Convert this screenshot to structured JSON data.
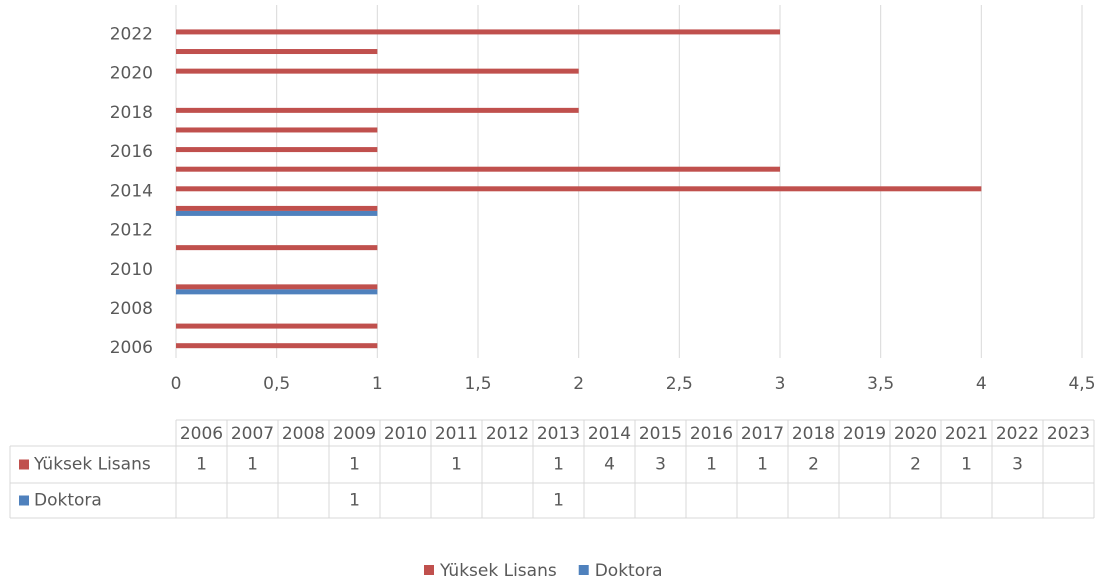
{
  "chart_data": {
    "type": "bar",
    "orientation": "horizontal",
    "categories": [
      "2006",
      "2007",
      "2008",
      "2009",
      "2010",
      "2011",
      "2012",
      "2013",
      "2014",
      "2015",
      "2016",
      "2017",
      "2018",
      "2019",
      "2020",
      "2021",
      "2022",
      "2023"
    ],
    "axis_label_every": 2,
    "series": [
      {
        "name": "Yüksek Lisans",
        "color": "#c0504d",
        "values": [
          1,
          1,
          null,
          1,
          null,
          1,
          null,
          1,
          4,
          3,
          1,
          1,
          2,
          null,
          2,
          1,
          3,
          null
        ]
      },
      {
        "name": "Doktora",
        "color": "#4f81bd",
        "values": [
          null,
          null,
          null,
          1,
          null,
          null,
          null,
          1,
          null,
          null,
          null,
          null,
          null,
          null,
          null,
          null,
          null,
          null
        ]
      }
    ],
    "xlim": [
      0,
      4.5
    ],
    "xticks": [
      0,
      {
        "value": 0.5,
        "label": "0,5"
      },
      1,
      {
        "value": 1.5,
        "label": "1,5"
      },
      2,
      {
        "value": 2.5,
        "label": "2,5"
      },
      3,
      {
        "value": 3.5,
        "label": "3,5"
      },
      4,
      {
        "value": 4.5,
        "label": "4,5"
      }
    ],
    "grid": true,
    "data_table": true,
    "legend": "bottom"
  }
}
